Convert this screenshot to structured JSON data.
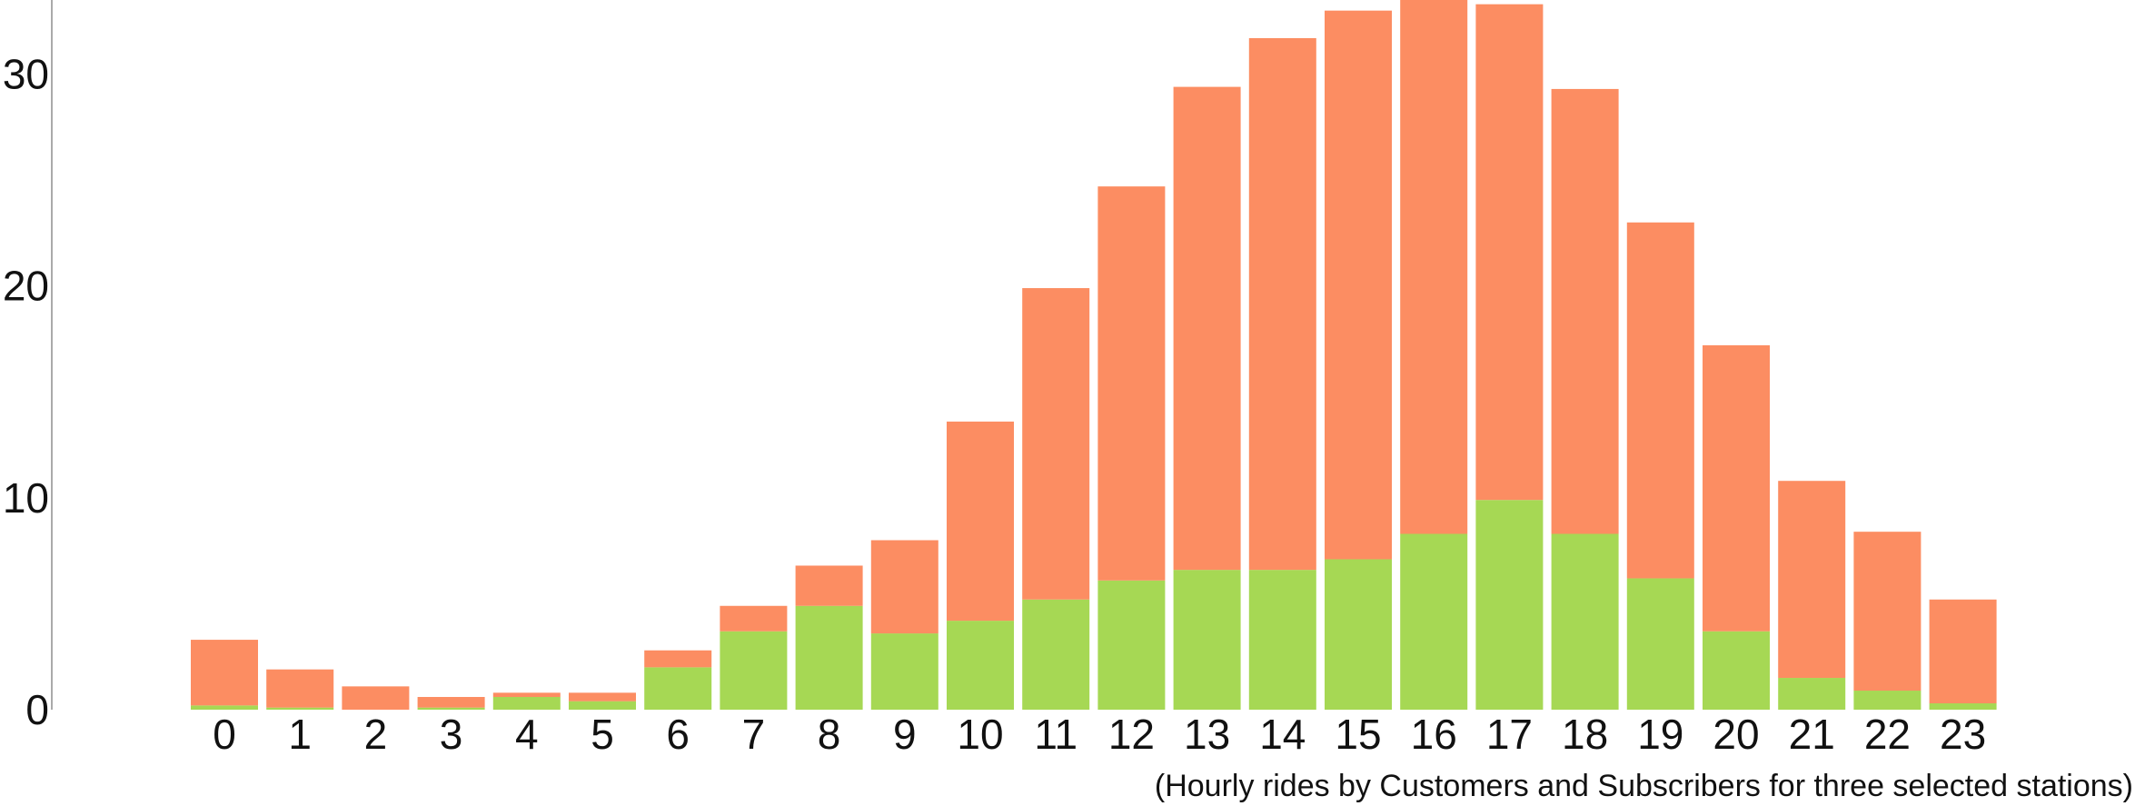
{
  "chart_data": {
    "type": "bar",
    "stacked": true,
    "title": "",
    "xlabel": "",
    "ylabel": "",
    "caption": "(Hourly rides by Customers and Subscribers for three selected stations)",
    "categories": [
      "0",
      "1",
      "2",
      "3",
      "4",
      "5",
      "6",
      "7",
      "8",
      "9",
      "10",
      "11",
      "12",
      "13",
      "14",
      "15",
      "16",
      "17",
      "18",
      "19",
      "20",
      "21",
      "22",
      "23"
    ],
    "ylim": [
      0,
      33.5
    ],
    "yticks": [
      0,
      10,
      20,
      30
    ],
    "grid": false,
    "legend": "none",
    "series": [
      {
        "color": "#a6d854",
        "values": [
          0.2,
          0.1,
          0.0,
          0.1,
          0.6,
          0.4,
          2.0,
          3.7,
          4.9,
          3.6,
          4.2,
          5.2,
          6.1,
          6.6,
          6.6,
          7.1,
          8.3,
          9.9,
          8.3,
          6.2,
          3.7,
          1.5,
          0.9,
          0.3
        ]
      },
      {
        "color": "#fc8d62",
        "values": [
          3.1,
          1.8,
          1.1,
          0.5,
          0.2,
          0.4,
          0.8,
          1.2,
          1.9,
          4.4,
          9.4,
          14.7,
          18.6,
          22.8,
          25.1,
          25.9,
          25.4,
          23.4,
          21.0,
          16.8,
          13.5,
          9.3,
          7.5,
          4.9
        ]
      }
    ]
  }
}
